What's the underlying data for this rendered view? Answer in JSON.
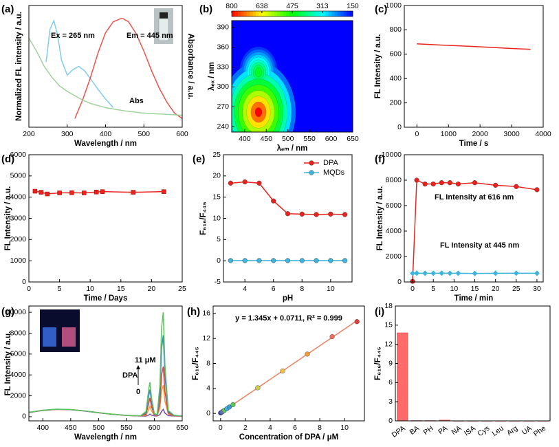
{
  "chart_data": [
    {
      "type": "line",
      "panel": "(a)",
      "xlabel": "Wavelength / nm",
      "ylabel": "Normalized FL intensity / a.u.",
      "y2label": "Absorbance / a.u.",
      "xlim": [
        200,
        600
      ],
      "xticks": [
        200,
        300,
        400,
        500,
        600
      ],
      "ylim": [
        0,
        1.12
      ],
      "annotations": [
        {
          "text": "Ex = 265 nm",
          "color": "#6ec6ea"
        },
        {
          "text": "Em = 445 nm",
          "color": "#f0504a"
        },
        {
          "text": "Abs",
          "color": "#9ed39b"
        }
      ],
      "series": [
        {
          "color": "#7ecbee",
          "x": [
            245,
            255,
            265,
            275,
            285,
            300,
            315,
            330,
            345,
            360,
            380,
            400,
            420
          ],
          "values": [
            0.6,
            0.9,
            0.98,
            0.85,
            0.62,
            0.48,
            0.53,
            0.56,
            0.52,
            0.45,
            0.35,
            0.26,
            0.18
          ]
        },
        {
          "color": "#f0504a",
          "x": [
            320,
            340,
            360,
            380,
            400,
            420,
            440,
            445,
            460,
            480,
            500,
            520,
            540,
            560,
            580,
            600
          ],
          "values": [
            0.08,
            0.25,
            0.45,
            0.68,
            0.87,
            0.97,
            1.0,
            1.0,
            0.97,
            0.86,
            0.7,
            0.52,
            0.36,
            0.23,
            0.13,
            0.08
          ]
        },
        {
          "color": "#9ed39b",
          "x": [
            200,
            220,
            240,
            260,
            280,
            300,
            320,
            340,
            360,
            400,
            450,
            500,
            550,
            600
          ],
          "values": [
            0.82,
            0.7,
            0.56,
            0.46,
            0.38,
            0.33,
            0.29,
            0.25,
            0.22,
            0.18,
            0.15,
            0.13,
            0.12,
            0.11
          ]
        }
      ]
    },
    {
      "type": "heatmap",
      "panel": "(b)",
      "xlabel": "λₑₘ / nm",
      "ylabel": "λₑₓ / nm",
      "xlim": [
        370,
        650
      ],
      "xticks": [
        400,
        450,
        500,
        550,
        600,
        650
      ],
      "ylim": [
        232,
        400
      ],
      "yticks": [
        240,
        270,
        300,
        330,
        360,
        390
      ],
      "clim": [
        800,
        150
      ],
      "cticks": [
        800,
        638,
        475,
        313,
        150
      ],
      "spots": {
        "x": [
          445,
          470,
          432,
          432
        ],
        "y": [
          300,
          252,
          322,
          262
        ],
        "values": [
          330,
          360,
          450,
          800
        ]
      }
    },
    {
      "type": "line",
      "panel": "(c)",
      "xlabel": "Time / s",
      "ylabel": "FL Intensity / a.u.",
      "xlim": [
        -400,
        4000
      ],
      "xticks": [
        0,
        1000,
        2000,
        3000,
        4000
      ],
      "ylim": [
        0,
        1000
      ],
      "yticks": [
        0,
        200,
        400,
        600,
        800,
        1000
      ],
      "series": [
        {
          "color": "#e8221c",
          "x": [
            0,
            600,
            1200,
            1800,
            2400,
            3000,
            3600
          ],
          "values": [
            685,
            677,
            670,
            663,
            655,
            647,
            640
          ]
        }
      ]
    },
    {
      "type": "line",
      "panel": "(d)",
      "xlabel": "Time / Days",
      "ylabel": "FL Intensity / a.u.",
      "xlim": [
        0,
        25
      ],
      "xticks": [
        0,
        5,
        10,
        15,
        20,
        25
      ],
      "ylim": [
        0,
        6000
      ],
      "yticks": [
        0,
        1000,
        2000,
        3000,
        4000,
        5000,
        6000
      ],
      "series": [
        {
          "color": "#e8221c",
          "marker": "square",
          "x": [
            1,
            2,
            3,
            5,
            7,
            9,
            11,
            12,
            17,
            22
          ],
          "values": [
            4280,
            4230,
            4150,
            4200,
            4210,
            4200,
            4240,
            4260,
            4230,
            4260
          ]
        }
      ]
    },
    {
      "type": "line",
      "panel": "(e)",
      "xlabel": "pH",
      "ylabel": "F₆₁₆/F₄₄₅",
      "legend": "upper right",
      "xlim": [
        2.5,
        11.5
      ],
      "xticks": [
        4,
        6,
        8,
        10
      ],
      "ylim": [
        -5,
        25
      ],
      "yticks": [
        -5,
        0,
        5,
        10,
        15,
        20,
        25
      ],
      "x": [
        3,
        4,
        5,
        6,
        7,
        8,
        9,
        10,
        11
      ],
      "series": [
        {
          "name": "DPA",
          "color": "#e8221c",
          "marker": "circle",
          "values": [
            18.3,
            18.6,
            18.3,
            14.1,
            11.1,
            11.0,
            10.9,
            11.0,
            10.9
          ]
        },
        {
          "name": "MQDs",
          "color": "#3cb4dc",
          "marker": "circle",
          "values": [
            0.05,
            0.05,
            0.05,
            0.05,
            0.05,
            0.05,
            0.05,
            0.05,
            0.05
          ]
        }
      ]
    },
    {
      "type": "line",
      "panel": "(f)",
      "xlabel": "Time / min",
      "ylabel": "FL Intensity / a.u.",
      "xlim": [
        -2,
        31.5
      ],
      "xticks": [
        0,
        5,
        10,
        15,
        20,
        25,
        30
      ],
      "ylim": [
        0,
        10000
      ],
      "yticks": [
        0,
        2000,
        4000,
        6000,
        8000,
        10000
      ],
      "annotations": [
        {
          "text": "FL Intensity at 616 nm",
          "color": "#e8221c"
        },
        {
          "text": "FL Intensity at 445 nm",
          "color": "#3cb4dc"
        }
      ],
      "series": [
        {
          "color": "#e8221c",
          "marker": "circle",
          "x": [
            0,
            1,
            3,
            5,
            7,
            9,
            11,
            15,
            20,
            25,
            30
          ],
          "values": [
            50,
            8000,
            7700,
            7700,
            7800,
            7800,
            7700,
            7800,
            7600,
            7500,
            7250
          ]
        },
        {
          "color": "#3cb4dc",
          "marker": "diamond",
          "x": [
            0,
            1,
            3,
            5,
            7,
            9,
            11,
            15,
            20,
            25,
            30
          ],
          "values": [
            680,
            690,
            680,
            680,
            690,
            680,
            680,
            670,
            680,
            690,
            680
          ]
        }
      ]
    },
    {
      "type": "line",
      "panel": "(g)",
      "xlabel": "Wavelength / nm",
      "ylabel": "FL Intensity / a.u.",
      "xlim": [
        375,
        650
      ],
      "xticks": [
        400,
        450,
        500,
        550,
        600,
        650
      ],
      "ylim": [
        -400,
        10600
      ],
      "yticks": [
        0,
        2000,
        4000,
        6000,
        8000,
        10000
      ],
      "annotations": [
        {
          "text": "11 μM",
          "color": "#000000"
        },
        {
          "text": "DPA",
          "color": "#000000"
        },
        {
          "text": "0",
          "color": "#000000"
        }
      ],
      "x": [
        375,
        400,
        425,
        450,
        475,
        500,
        525,
        550,
        575,
        585,
        590,
        592,
        595,
        600,
        605,
        610,
        613,
        616,
        619,
        625,
        635,
        650
      ],
      "series": [
        {
          "color": "#7b4fa0",
          "values": [
            400,
            600,
            700,
            670,
            545,
            375,
            230,
            120,
            60,
            60,
            150,
            250,
            150,
            80,
            70,
            200,
            500,
            700,
            350,
            100,
            70,
            40
          ]
        },
        {
          "color": "#f29a38",
          "values": [
            400,
            600,
            700,
            670,
            545,
            375,
            230,
            120,
            70,
            150,
            700,
            1000,
            550,
            150,
            130,
            800,
            2500,
            3000,
            1500,
            250,
            100,
            45
          ]
        },
        {
          "color": "#e0403a",
          "values": [
            400,
            600,
            700,
            670,
            545,
            375,
            230,
            120,
            70,
            250,
            1300,
            1800,
            950,
            200,
            160,
            1300,
            4000,
            4800,
            2400,
            350,
            110,
            50
          ]
        },
        {
          "color": "#3c7fc8",
          "values": [
            410,
            610,
            710,
            680,
            550,
            380,
            235,
            125,
            75,
            380,
            2000,
            2600,
            1400,
            250,
            180,
            2200,
            6500,
            7800,
            3900,
            480,
            130,
            55
          ]
        },
        {
          "color": "#5cc45c",
          "values": [
            420,
            620,
            720,
            690,
            560,
            390,
            240,
            130,
            80,
            500,
            2600,
            3300,
            1800,
            300,
            200,
            3000,
            8500,
            10000,
            5000,
            600,
            150,
            60
          ]
        }
      ]
    },
    {
      "type": "line",
      "panel": "(h)",
      "xlabel": "Concentration of DPA / μM",
      "ylabel": "F₆₁₆/F₄₄₅",
      "xlim": [
        -0.6,
        11.6
      ],
      "xticks": [
        0,
        2,
        4,
        6,
        8,
        10
      ],
      "ylim": [
        -1.2,
        17.2
      ],
      "yticks": [
        0,
        4,
        8,
        12,
        16
      ],
      "annotations": [
        {
          "text": "y = 1.345x + 0.0711, R² = 0.999",
          "color": "#000000"
        }
      ],
      "series": [
        {
          "color": "#f08060",
          "x": [
            0,
            11
          ],
          "values": [
            0.07,
            14.87
          ]
        },
        {
          "color": "#888888",
          "line": false,
          "marker": "circle",
          "x": [
            0,
            0.1,
            0.2,
            0.3,
            0.5,
            0.7,
            1,
            3,
            5,
            7,
            9,
            11
          ],
          "values": [
            0.07,
            0.2,
            0.34,
            0.47,
            0.74,
            1.01,
            1.4,
            4.1,
            6.8,
            9.5,
            12.3,
            14.7
          ],
          "colors": [
            "#3c3c9c",
            "#3c7fc8",
            "#9a6fc8",
            "#5cc45c",
            "#3cb4dc",
            "#3c9cdc",
            "#5cc45c",
            "#c8d050",
            "#f2c040",
            "#f29a38",
            "#f07060",
            "#e0403a"
          ]
        }
      ]
    },
    {
      "type": "bar",
      "panel": "(i)",
      "ylabel": "F₆₁₆/F₄₄₅",
      "color": "#ff6b6b",
      "categories": [
        "DPA",
        "BA",
        "PH",
        "PA",
        "NA",
        "ISA",
        "Cys",
        "Leu",
        "Arg",
        "UA",
        "Phe"
      ],
      "values": [
        13.8,
        0.05,
        0.05,
        0.12,
        0.03,
        0.03,
        0.03,
        0.03,
        0.03,
        0.03,
        0.03
      ],
      "ylim": [
        0,
        18
      ],
      "yticks": [
        0,
        3,
        6,
        9,
        12,
        15,
        18
      ]
    }
  ]
}
